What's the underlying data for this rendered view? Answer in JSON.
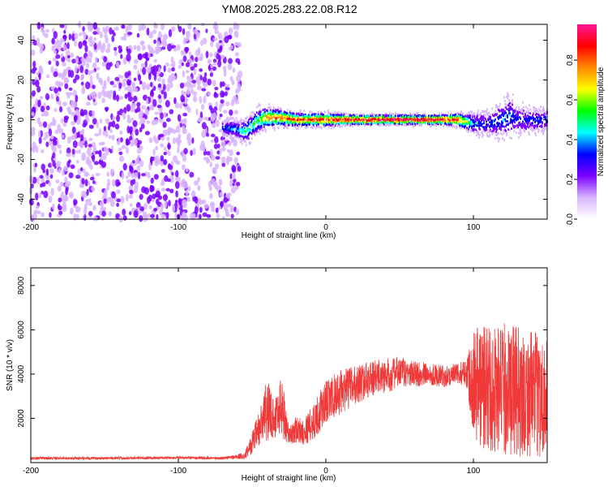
{
  "title": "YM08.2025.283.22.08.R12",
  "chart_data": [
    {
      "type": "heatmap",
      "xlabel": "Height of straight line (km)",
      "ylabel": "Frequency (Hz)",
      "xlim": [
        -200,
        150
      ],
      "ylim": [
        -50,
        48
      ],
      "xticks": [
        -200,
        -100,
        0,
        100
      ],
      "yticks": [
        -40,
        -20,
        0,
        20,
        40
      ],
      "colorbar": {
        "label": "Normalized spectral amplitude",
        "range": [
          0.0,
          0.98
        ],
        "ticks": [
          0.0,
          0.2,
          0.4,
          0.6,
          0.8
        ],
        "tick_labels": [
          "0.0",
          "0.2",
          "0.4",
          "0.6",
          "0.8"
        ],
        "colormap": [
          "#ffffff",
          "#d8b4fe",
          "#7a00ff",
          "#0000ff",
          "#00ffff",
          "#00ff00",
          "#ffff00",
          "#ff8800",
          "#ff0000",
          "#ff1493"
        ]
      },
      "noise_region": {
        "x_range": [
          -200,
          -58
        ],
        "freq_range": [
          -50,
          48
        ],
        "amplitude": [
          0.05,
          0.2
        ]
      },
      "band": {
        "x": [
          -70,
          -60,
          -55,
          -45,
          -40,
          -30,
          -20,
          -10,
          0,
          20,
          40,
          60,
          80,
          90,
          100,
          110,
          120,
          125,
          130,
          140,
          150
        ],
        "center": [
          -4,
          -5,
          -6,
          0,
          1,
          1,
          0,
          0,
          0,
          0,
          0,
          0,
          0,
          0,
          -2,
          -2,
          0,
          2,
          0,
          0,
          0
        ],
        "half_width": [
          4,
          5,
          7,
          7,
          6,
          5,
          4,
          4,
          4,
          3,
          3,
          3,
          3,
          4,
          6,
          7,
          10,
          12,
          8,
          7,
          7
        ],
        "peak": [
          0.35,
          0.4,
          0.45,
          0.55,
          0.75,
          0.8,
          0.85,
          0.85,
          0.88,
          0.95,
          0.97,
          0.97,
          0.95,
          0.85,
          0.35,
          0.3,
          0.35,
          0.35,
          0.3,
          0.3,
          0.3
        ]
      }
    },
    {
      "type": "line",
      "xlabel": "Height of straight line (km)",
      "ylabel": "SNR (10 * v/v)",
      "xlim": [
        -200,
        150
      ],
      "ylim": [
        0,
        8800
      ],
      "xticks": [
        -200,
        -100,
        0,
        100
      ],
      "yticks": [
        2000,
        4000,
        6000,
        8000
      ],
      "color": "#f03a3a",
      "series": [
        {
          "x": [
            -200,
            -150,
            -100,
            -70,
            -55,
            -50,
            -45,
            -40,
            -35,
            -30,
            -25,
            -20,
            -15,
            -10,
            -5,
            0,
            10,
            20,
            30,
            40,
            50,
            60,
            70,
            80,
            90,
            95,
            100,
            105,
            110,
            120,
            130,
            140,
            150
          ],
          "y": [
            200,
            200,
            220,
            200,
            300,
            900,
            1500,
            2400,
            2000,
            2600,
            1200,
            1500,
            1400,
            1700,
            2200,
            2700,
            3200,
            3500,
            3800,
            3900,
            4100,
            4000,
            4000,
            3900,
            4000,
            4100,
            3800,
            3500,
            3400,
            3300,
            3200,
            3100,
            3000
          ],
          "spread": [
            60,
            60,
            60,
            60,
            150,
            500,
            900,
            1400,
            900,
            1500,
            400,
            600,
            600,
            800,
            900,
            1000,
            1000,
            900,
            800,
            800,
            700,
            600,
            500,
            500,
            500,
            600,
            2500,
            3000,
            3000,
            3000,
            3000,
            2800,
            2800
          ]
        }
      ]
    }
  ]
}
